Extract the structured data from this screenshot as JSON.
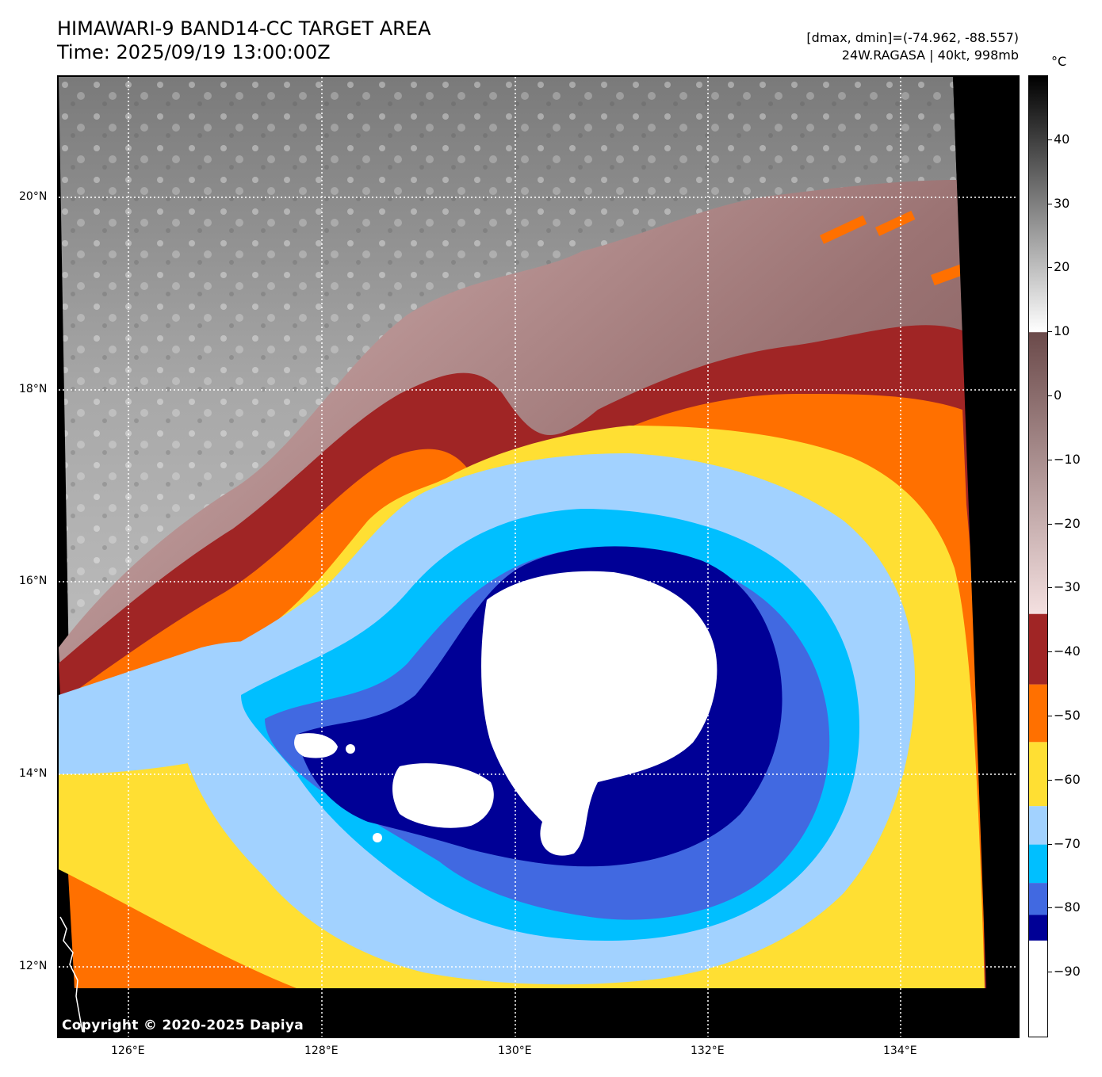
{
  "header": {
    "title_line1": "HIMAWARI-9 BAND14-CC TARGET AREA",
    "title_line2": "Time: 2025/09/19 13:00:00Z",
    "range_text": "[dmax, dmin]=(-74.962, -88.557)",
    "storm_text": "24W.RAGASA | 40kt, 998mb"
  },
  "map": {
    "lat_labels": [
      "20°N",
      "18°N",
      "16°N",
      "14°N",
      "12°N"
    ],
    "lon_labels": [
      "126°E",
      "128°E",
      "130°E",
      "132°E",
      "134°E"
    ],
    "copyright": "Copyright © 2020-2025 Dapiya"
  },
  "colorbar": {
    "unit": "°C",
    "ticks": [
      "40",
      "30",
      "20",
      "10",
      "0",
      "−10",
      "−20",
      "−30",
      "−40",
      "−50",
      "−60",
      "−70",
      "−80",
      "−90"
    ],
    "range": [
      -100,
      50
    ],
    "bands": [
      {
        "from": -100,
        "to": -85,
        "color": "#ffffff"
      },
      {
        "from": -85,
        "to": -81,
        "color": "#000096"
      },
      {
        "from": -81,
        "to": -76,
        "color": "#4169e1"
      },
      {
        "from": -76,
        "to": -70,
        "color": "#00bfff"
      },
      {
        "from": -70,
        "to": -64,
        "color": "#a2d2ff"
      },
      {
        "from": -64,
        "to": -54,
        "color": "#ffdf33"
      },
      {
        "from": -54,
        "to": -45,
        "color": "#ff7000"
      },
      {
        "from": -45,
        "to": -34,
        "color": "#a02525"
      }
    ]
  },
  "colors": {
    "warm_top": "#f2d9d9",
    "warm_mid": "#7a5a5a",
    "grey_light": "#f0f0f0",
    "grey_dark": "#000000"
  }
}
